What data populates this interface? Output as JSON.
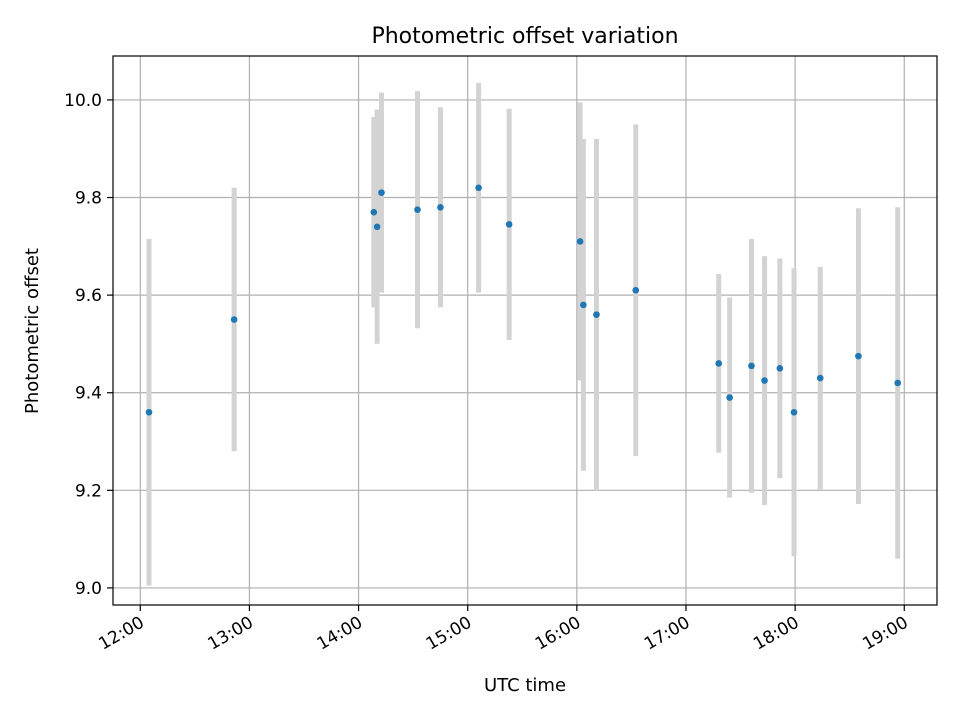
{
  "chart_data": {
    "type": "scatter",
    "title": "Photometric offset variation",
    "xlabel": "UTC time",
    "ylabel": "Photometric offset",
    "x_unit": "hours UTC",
    "xlim": [
      11.75,
      19.3
    ],
    "ylim": [
      8.965,
      10.09
    ],
    "xticks": [
      12,
      13,
      14,
      15,
      16,
      17,
      18,
      19
    ],
    "xtick_labels": [
      "12:00",
      "13:00",
      "14:00",
      "15:00",
      "16:00",
      "17:00",
      "18:00",
      "19:00"
    ],
    "yticks": [
      9.0,
      9.2,
      9.4,
      9.6,
      9.8,
      10.0
    ],
    "ytick_labels": [
      "9.0",
      "9.2",
      "9.4",
      "9.6",
      "9.8",
      "10.0"
    ],
    "grid": true,
    "legend": "none",
    "point_color": "#1f77b4",
    "errorbar_color": "#d3d3d3",
    "points": [
      {
        "x": 12.08,
        "y": 9.36,
        "err": 0.355
      },
      {
        "x": 12.86,
        "y": 9.55,
        "err": 0.27
      },
      {
        "x": 14.14,
        "y": 9.77,
        "err": 0.195
      },
      {
        "x": 14.17,
        "y": 9.74,
        "err": 0.24
      },
      {
        "x": 14.21,
        "y": 9.81,
        "err": 0.205
      },
      {
        "x": 14.54,
        "y": 9.775,
        "err": 0.243
      },
      {
        "x": 14.75,
        "y": 9.78,
        "err": 0.205
      },
      {
        "x": 15.1,
        "y": 9.82,
        "err": 0.215
      },
      {
        "x": 15.38,
        "y": 9.745,
        "err": 0.237
      },
      {
        "x": 16.03,
        "y": 9.71,
        "err": 0.285
      },
      {
        "x": 16.06,
        "y": 9.58,
        "err": 0.34
      },
      {
        "x": 16.18,
        "y": 9.56,
        "err": 0.36
      },
      {
        "x": 16.54,
        "y": 9.61,
        "err": 0.34
      },
      {
        "x": 17.3,
        "y": 9.46,
        "err": 0.183
      },
      {
        "x": 17.4,
        "y": 9.39,
        "err": 0.205
      },
      {
        "x": 17.6,
        "y": 9.455,
        "err": 0.26
      },
      {
        "x": 17.72,
        "y": 9.425,
        "err": 0.255
      },
      {
        "x": 17.86,
        "y": 9.45,
        "err": 0.225
      },
      {
        "x": 17.99,
        "y": 9.36,
        "err": 0.295
      },
      {
        "x": 18.23,
        "y": 9.43,
        "err": 0.228
      },
      {
        "x": 18.58,
        "y": 9.475,
        "err": 0.303
      },
      {
        "x": 18.94,
        "y": 9.42,
        "err": 0.36
      }
    ]
  }
}
